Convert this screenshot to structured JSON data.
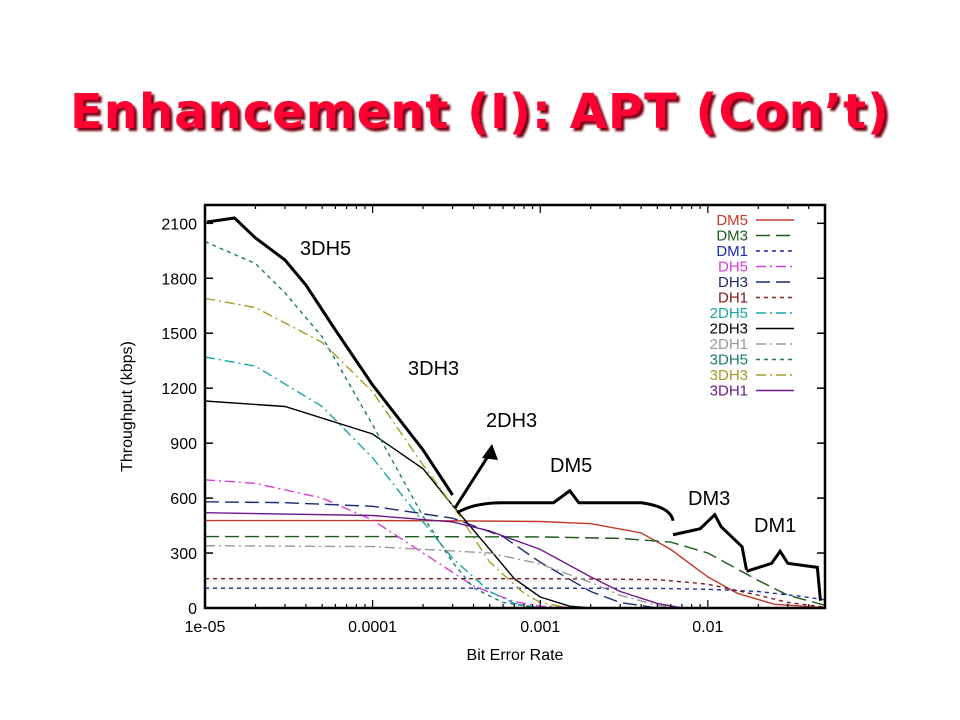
{
  "slide": {
    "title": "Enhancement (I): APT (Con’t)"
  },
  "chart_data": {
    "type": "line",
    "xscale": "log",
    "xlim": [
      1e-05,
      0.05
    ],
    "ylim": [
      0,
      2200
    ],
    "xlabel": "Bit Error Rate",
    "ylabel": "Throughput (kbps)",
    "x_ticks": [
      1e-05,
      0.0001,
      0.001,
      0.01
    ],
    "x_tick_labels": [
      "1e-05",
      "0.0001",
      "0.001",
      "0.01"
    ],
    "y_ticks": [
      0,
      300,
      600,
      900,
      1200,
      1500,
      1800,
      2100
    ],
    "y_tick_labels": [
      "0",
      "300",
      "600",
      "900",
      "1200",
      "1500",
      "1800",
      "2100"
    ],
    "legend_position": "top-right",
    "series": [
      {
        "name": "DM5",
        "color": "#c0392b",
        "dash": "solid",
        "points": [
          [
            1e-05,
            477
          ],
          [
            0.0001,
            477
          ],
          [
            0.0003,
            476
          ],
          [
            0.001,
            472
          ],
          [
            0.002,
            460
          ],
          [
            0.004,
            410
          ],
          [
            0.006,
            320
          ],
          [
            0.01,
            170
          ],
          [
            0.015,
            80
          ],
          [
            0.025,
            20
          ],
          [
            0.05,
            2
          ]
        ]
      },
      {
        "name": "DM3",
        "color": "#1e5a1e",
        "dash": "longdash",
        "points": [
          [
            1e-05,
            390
          ],
          [
            0.0001,
            390
          ],
          [
            0.001,
            388
          ],
          [
            0.003,
            380
          ],
          [
            0.006,
            360
          ],
          [
            0.01,
            300
          ],
          [
            0.02,
            150
          ],
          [
            0.03,
            70
          ],
          [
            0.05,
            15
          ]
        ]
      },
      {
        "name": "DM1",
        "color": "#1a2aa8",
        "dash": "dash",
        "points": [
          [
            1e-05,
            108
          ],
          [
            0.0001,
            108
          ],
          [
            0.001,
            108
          ],
          [
            0.005,
            107
          ],
          [
            0.01,
            102
          ],
          [
            0.02,
            90
          ],
          [
            0.035,
            65
          ],
          [
            0.05,
            45
          ]
        ]
      },
      {
        "name": "DH5",
        "color": "#d63cd6",
        "dash": "dashdot",
        "points": [
          [
            1e-05,
            700
          ],
          [
            2e-05,
            680
          ],
          [
            5e-05,
            600
          ],
          [
            0.0001,
            480
          ],
          [
            0.0002,
            300
          ],
          [
            0.0004,
            120
          ],
          [
            0.0007,
            35
          ],
          [
            0.001,
            10
          ],
          [
            0.002,
            0
          ]
        ]
      },
      {
        "name": "DH3",
        "color": "#1a2a6e",
        "dash": "longdash",
        "points": [
          [
            1e-05,
            580
          ],
          [
            3e-05,
            575
          ],
          [
            0.0001,
            555
          ],
          [
            0.0003,
            490
          ],
          [
            0.0006,
            390
          ],
          [
            0.001,
            250
          ],
          [
            0.002,
            90
          ],
          [
            0.003,
            30
          ],
          [
            0.005,
            0
          ]
        ]
      },
      {
        "name": "DH1",
        "color": "#7a1a1a",
        "dash": "dash",
        "points": [
          [
            1e-05,
            160
          ],
          [
            0.001,
            160
          ],
          [
            0.005,
            155
          ],
          [
            0.01,
            130
          ],
          [
            0.02,
            70
          ],
          [
            0.03,
            30
          ],
          [
            0.05,
            5
          ]
        ]
      },
      {
        "name": "2DH5",
        "color": "#1aa5a5",
        "dash": "dashdot",
        "points": [
          [
            1e-05,
            1370
          ],
          [
            2e-05,
            1320
          ],
          [
            5e-05,
            1100
          ],
          [
            0.0001,
            820
          ],
          [
            0.0002,
            470
          ],
          [
            0.0003,
            270
          ],
          [
            0.0005,
            90
          ],
          [
            0.0007,
            25
          ],
          [
            0.001,
            0
          ]
        ]
      },
      {
        "name": "2DH3",
        "color": "#000000",
        "dash": "solid",
        "points": [
          [
            1e-05,
            1130
          ],
          [
            3e-05,
            1100
          ],
          [
            0.0001,
            950
          ],
          [
            0.0002,
            760
          ],
          [
            0.0003,
            560
          ],
          [
            0.0005,
            320
          ],
          [
            0.0007,
            160
          ],
          [
            0.001,
            60
          ],
          [
            0.0015,
            10
          ],
          [
            0.002,
            0
          ]
        ]
      },
      {
        "name": "2DH1",
        "color": "#999999",
        "dash": "dashdot",
        "points": [
          [
            1e-05,
            340
          ],
          [
            0.0001,
            335
          ],
          [
            0.0005,
            300
          ],
          [
            0.001,
            240
          ],
          [
            0.002,
            140
          ],
          [
            0.003,
            70
          ],
          [
            0.005,
            15
          ],
          [
            0.007,
            0
          ]
        ]
      },
      {
        "name": "3DH5",
        "color": "#1a7a6a",
        "dash": "dash",
        "points": [
          [
            1e-05,
            2000
          ],
          [
            2e-05,
            1880
          ],
          [
            3e-05,
            1720
          ],
          [
            5e-05,
            1480
          ],
          [
            0.0001,
            1000
          ],
          [
            0.0002,
            500
          ],
          [
            0.0003,
            250
          ],
          [
            0.0004,
            110
          ],
          [
            0.0006,
            30
          ],
          [
            0.001,
            0
          ]
        ]
      },
      {
        "name": "3DH3",
        "color": "#a89a2a",
        "dash": "dashdot",
        "points": [
          [
            1e-05,
            1690
          ],
          [
            2e-05,
            1640
          ],
          [
            5e-05,
            1450
          ],
          [
            0.0001,
            1180
          ],
          [
            0.0002,
            780
          ],
          [
            0.0003,
            560
          ],
          [
            0.0005,
            250
          ],
          [
            0.0008,
            80
          ],
          [
            0.001,
            30
          ],
          [
            0.0015,
            0
          ]
        ]
      },
      {
        "name": "3DH1",
        "color": "#6a1a8a",
        "dash": "solid",
        "points": [
          [
            1e-05,
            520
          ],
          [
            0.0001,
            505
          ],
          [
            0.0003,
            470
          ],
          [
            0.0005,
            420
          ],
          [
            0.001,
            320
          ],
          [
            0.002,
            170
          ],
          [
            0.003,
            90
          ],
          [
            0.005,
            25
          ],
          [
            0.007,
            0
          ]
        ]
      }
    ],
    "annotations": [
      {
        "text": "3DH5"
      },
      {
        "text": "3DH3"
      },
      {
        "text": "2DH3"
      },
      {
        "text": "DM5"
      },
      {
        "text": "DM3"
      },
      {
        "text": "DM1"
      }
    ]
  }
}
